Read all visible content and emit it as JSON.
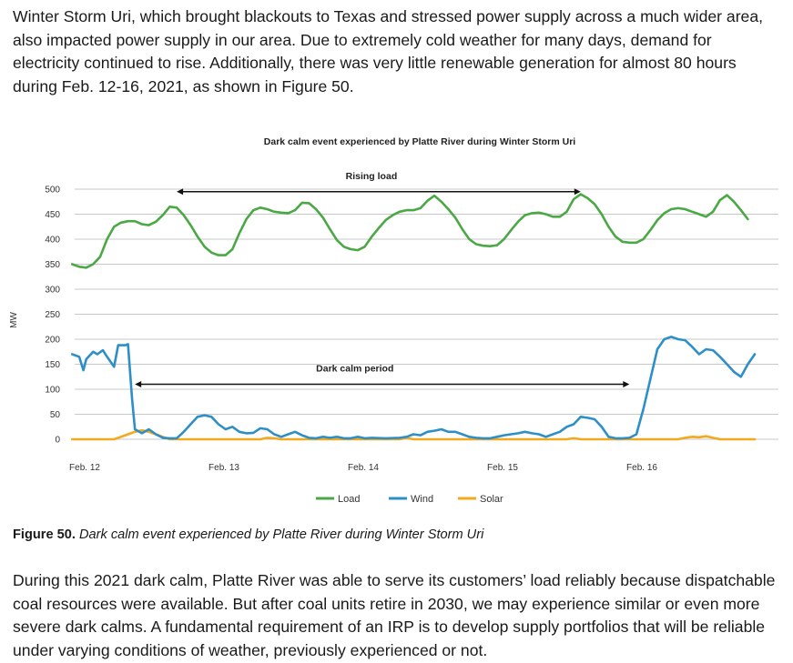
{
  "intro_text": "Winter Storm Uri, which brought blackouts to Texas and stressed power supply across a much wider area, also impacted power supply in our area. Due to extremely cold weather for many days, demand for electricity continued to rise. Additionally, there was very little renewable generation for almost 80 hours during Feb. 12-16, 2021, as shown in Figure 50.",
  "caption": {
    "label": "Figure 50.",
    "text": " Dark calm event experienced by Platte River during Winter Storm Uri"
  },
  "outro_text": "During this 2021 dark calm, Platte River was able to serve its customers’ load reliably because dispatchable coal resources were available. But after coal units retire in 2030, we may experience similar or even more severe dark calms. A fundamental requirement of an IRP is to develop supply portfolios that will be reliable under varying conditions of weather, previously experienced or not.",
  "colors": {
    "load": "#4aa845",
    "wind": "#2e8fc8",
    "solar": "#f3a91e",
    "grid": "#c8c8c8"
  },
  "chart_data": {
    "type": "line",
    "title": "Dark calm event experienced by Platte River during Winter Storm Uri",
    "ylabel": "MW",
    "ylim": [
      0,
      500
    ],
    "yticks": [
      0,
      50,
      100,
      150,
      200,
      250,
      300,
      350,
      400,
      450,
      500
    ],
    "x_unit": "days since Feb. 12 00:00",
    "xlim": [
      0,
      5.0
    ],
    "xticks": [
      {
        "x": 0,
        "label": "Feb. 12"
      },
      {
        "x": 1,
        "label": "Feb. 13"
      },
      {
        "x": 2,
        "label": "Feb. 14"
      },
      {
        "x": 3,
        "label": "Feb. 15"
      },
      {
        "x": 4,
        "label": "Feb. 16"
      }
    ],
    "grid": true,
    "legend": "bottom",
    "series": [
      {
        "name": "Load",
        "color": "#4aa845",
        "points": [
          [
            -0.05,
            350
          ],
          [
            0.0,
            345
          ],
          [
            0.05,
            343
          ],
          [
            0.1,
            350
          ],
          [
            0.15,
            365
          ],
          [
            0.2,
            400
          ],
          [
            0.25,
            425
          ],
          [
            0.3,
            433
          ],
          [
            0.35,
            436
          ],
          [
            0.4,
            436
          ],
          [
            0.45,
            430
          ],
          [
            0.5,
            428
          ],
          [
            0.55,
            435
          ],
          [
            0.6,
            448
          ],
          [
            0.65,
            465
          ],
          [
            0.7,
            463
          ],
          [
            0.75,
            448
          ],
          [
            0.8,
            428
          ],
          [
            0.85,
            405
          ],
          [
            0.9,
            385
          ],
          [
            0.95,
            373
          ],
          [
            1.0,
            368
          ],
          [
            1.05,
            368
          ],
          [
            1.1,
            380
          ],
          [
            1.15,
            412
          ],
          [
            1.2,
            440
          ],
          [
            1.25,
            458
          ],
          [
            1.3,
            463
          ],
          [
            1.35,
            460
          ],
          [
            1.4,
            455
          ],
          [
            1.45,
            453
          ],
          [
            1.5,
            452
          ],
          [
            1.55,
            458
          ],
          [
            1.6,
            473
          ],
          [
            1.65,
            472
          ],
          [
            1.7,
            460
          ],
          [
            1.75,
            443
          ],
          [
            1.8,
            420
          ],
          [
            1.85,
            398
          ],
          [
            1.9,
            385
          ],
          [
            1.95,
            380
          ],
          [
            2.0,
            378
          ],
          [
            2.05,
            385
          ],
          [
            2.1,
            405
          ],
          [
            2.15,
            422
          ],
          [
            2.2,
            438
          ],
          [
            2.25,
            448
          ],
          [
            2.3,
            455
          ],
          [
            2.35,
            458
          ],
          [
            2.4,
            458
          ],
          [
            2.45,
            462
          ],
          [
            2.5,
            477
          ],
          [
            2.55,
            487
          ],
          [
            2.6,
            475
          ],
          [
            2.65,
            460
          ],
          [
            2.7,
            443
          ],
          [
            2.75,
            420
          ],
          [
            2.8,
            400
          ],
          [
            2.85,
            390
          ],
          [
            2.9,
            387
          ],
          [
            2.95,
            386
          ],
          [
            3.0,
            388
          ],
          [
            3.05,
            400
          ],
          [
            3.1,
            418
          ],
          [
            3.15,
            435
          ],
          [
            3.2,
            448
          ],
          [
            3.25,
            452
          ],
          [
            3.3,
            453
          ],
          [
            3.35,
            450
          ],
          [
            3.4,
            445
          ],
          [
            3.45,
            445
          ],
          [
            3.5,
            455
          ],
          [
            3.55,
            480
          ],
          [
            3.6,
            490
          ],
          [
            3.65,
            482
          ],
          [
            3.7,
            470
          ],
          [
            3.75,
            450
          ],
          [
            3.8,
            425
          ],
          [
            3.85,
            405
          ],
          [
            3.9,
            395
          ],
          [
            3.95,
            393
          ],
          [
            4.0,
            393
          ],
          [
            4.05,
            400
          ],
          [
            4.1,
            418
          ],
          [
            4.15,
            438
          ],
          [
            4.2,
            452
          ],
          [
            4.25,
            460
          ],
          [
            4.3,
            462
          ],
          [
            4.35,
            460
          ],
          [
            4.4,
            455
          ],
          [
            4.45,
            450
          ],
          [
            4.5,
            445
          ],
          [
            4.55,
            455
          ],
          [
            4.6,
            478
          ],
          [
            4.65,
            488
          ],
          [
            4.7,
            475
          ],
          [
            4.75,
            458
          ],
          [
            4.8,
            440
          ]
        ]
      },
      {
        "name": "Wind",
        "color": "#2e8fc8",
        "points": [
          [
            -0.05,
            170
          ],
          [
            0.0,
            165
          ],
          [
            0.03,
            138
          ],
          [
            0.05,
            160
          ],
          [
            0.1,
            175
          ],
          [
            0.13,
            170
          ],
          [
            0.17,
            178
          ],
          [
            0.2,
            165
          ],
          [
            0.25,
            145
          ],
          [
            0.28,
            188
          ],
          [
            0.33,
            188
          ],
          [
            0.35,
            190
          ],
          [
            0.38,
            80
          ],
          [
            0.4,
            20
          ],
          [
            0.45,
            12
          ],
          [
            0.5,
            20
          ],
          [
            0.55,
            10
          ],
          [
            0.6,
            3
          ],
          [
            0.65,
            2
          ],
          [
            0.7,
            2
          ],
          [
            0.75,
            15
          ],
          [
            0.8,
            30
          ],
          [
            0.85,
            45
          ],
          [
            0.9,
            48
          ],
          [
            0.95,
            45
          ],
          [
            1.0,
            30
          ],
          [
            1.05,
            20
          ],
          [
            1.1,
            25
          ],
          [
            1.15,
            15
          ],
          [
            1.2,
            12
          ],
          [
            1.25,
            13
          ],
          [
            1.3,
            22
          ],
          [
            1.35,
            20
          ],
          [
            1.4,
            10
          ],
          [
            1.45,
            5
          ],
          [
            1.5,
            10
          ],
          [
            1.55,
            15
          ],
          [
            1.6,
            8
          ],
          [
            1.65,
            3
          ],
          [
            1.7,
            2
          ],
          [
            1.75,
            5
          ],
          [
            1.8,
            3
          ],
          [
            1.85,
            5
          ],
          [
            1.9,
            2
          ],
          [
            1.95,
            2
          ],
          [
            2.0,
            5
          ],
          [
            2.05,
            2
          ],
          [
            2.1,
            3
          ],
          [
            2.2,
            2
          ],
          [
            2.3,
            3
          ],
          [
            2.35,
            5
          ],
          [
            2.4,
            10
          ],
          [
            2.45,
            8
          ],
          [
            2.5,
            15
          ],
          [
            2.55,
            17
          ],
          [
            2.6,
            20
          ],
          [
            2.65,
            15
          ],
          [
            2.7,
            15
          ],
          [
            2.75,
            10
          ],
          [
            2.8,
            5
          ],
          [
            2.85,
            3
          ],
          [
            2.9,
            2
          ],
          [
            2.95,
            2
          ],
          [
            3.0,
            5
          ],
          [
            3.05,
            8
          ],
          [
            3.1,
            10
          ],
          [
            3.15,
            12
          ],
          [
            3.2,
            15
          ],
          [
            3.25,
            12
          ],
          [
            3.3,
            10
          ],
          [
            3.35,
            5
          ],
          [
            3.4,
            10
          ],
          [
            3.45,
            15
          ],
          [
            3.5,
            25
          ],
          [
            3.55,
            30
          ],
          [
            3.6,
            45
          ],
          [
            3.65,
            43
          ],
          [
            3.7,
            40
          ],
          [
            3.75,
            25
          ],
          [
            3.8,
            5
          ],
          [
            3.85,
            2
          ],
          [
            3.9,
            2
          ],
          [
            3.95,
            3
          ],
          [
            4.0,
            10
          ],
          [
            4.05,
            60
          ],
          [
            4.1,
            120
          ],
          [
            4.15,
            180
          ],
          [
            4.2,
            200
          ],
          [
            4.25,
            205
          ],
          [
            4.3,
            200
          ],
          [
            4.35,
            198
          ],
          [
            4.4,
            185
          ],
          [
            4.45,
            170
          ],
          [
            4.5,
            180
          ],
          [
            4.55,
            178
          ],
          [
            4.6,
            165
          ],
          [
            4.65,
            150
          ],
          [
            4.7,
            135
          ],
          [
            4.75,
            125
          ],
          [
            4.8,
            150
          ],
          [
            4.85,
            170
          ]
        ]
      },
      {
        "name": "Solar",
        "color": "#f3a91e",
        "points": [
          [
            -0.05,
            0
          ],
          [
            0.25,
            0
          ],
          [
            0.3,
            5
          ],
          [
            0.35,
            10
          ],
          [
            0.4,
            15
          ],
          [
            0.45,
            18
          ],
          [
            0.5,
            15
          ],
          [
            0.55,
            10
          ],
          [
            0.6,
            5
          ],
          [
            0.65,
            0
          ],
          [
            1.3,
            0
          ],
          [
            1.35,
            3
          ],
          [
            1.4,
            2
          ],
          [
            1.45,
            0
          ],
          [
            2.3,
            0
          ],
          [
            2.35,
            3
          ],
          [
            2.4,
            0
          ],
          [
            3.0,
            0
          ],
          [
            3.5,
            0
          ],
          [
            3.55,
            2
          ],
          [
            3.6,
            0
          ],
          [
            4.3,
            0
          ],
          [
            4.35,
            3
          ],
          [
            4.4,
            5
          ],
          [
            4.45,
            4
          ],
          [
            4.5,
            6
          ],
          [
            4.55,
            3
          ],
          [
            4.6,
            0
          ],
          [
            4.85,
            0
          ]
        ]
      }
    ],
    "annotations": [
      {
        "label": "Rising load",
        "x_start": 0.7,
        "x_end": 3.6,
        "y": 495
      },
      {
        "label": "Dark calm period",
        "x_start": 0.4,
        "x_end": 3.95,
        "y": 110
      }
    ]
  }
}
